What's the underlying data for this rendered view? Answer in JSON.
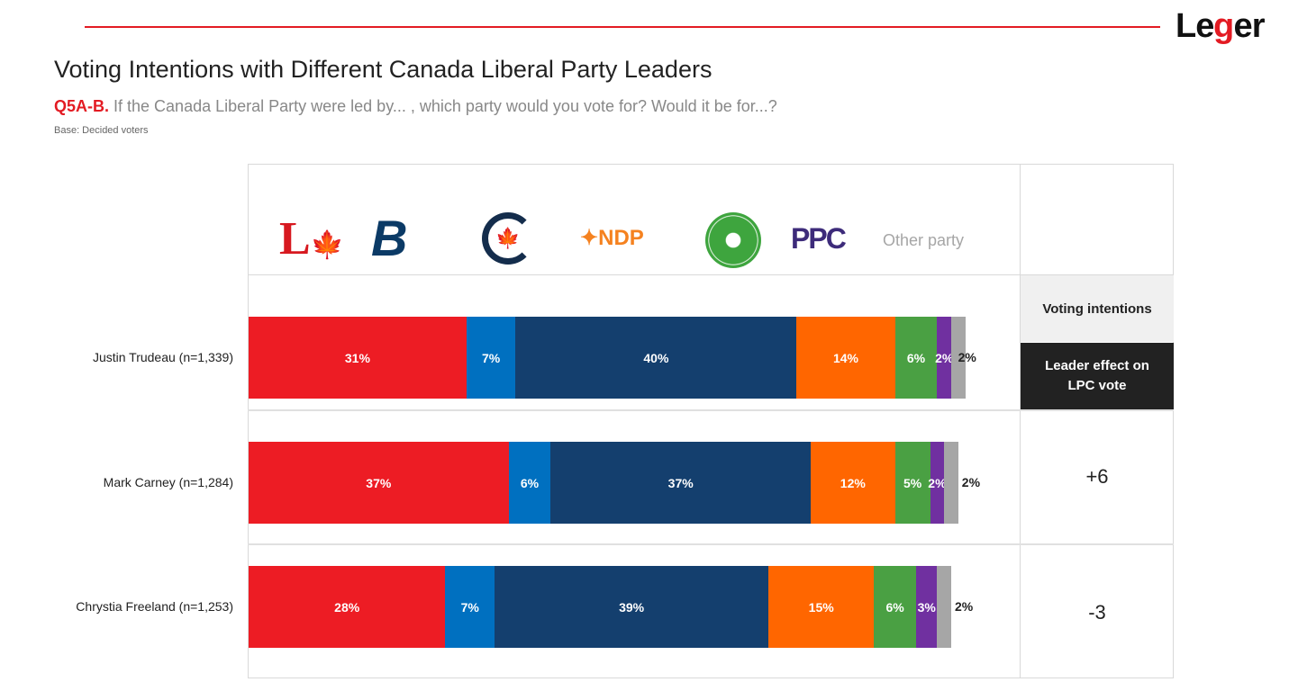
{
  "header": {
    "brand": "Leger",
    "title": "Voting Intentions with Different Canada Liberal Party Leaders",
    "question_code": "Q5A-B.",
    "question": " If the Canada Liberal Party were led by... , which party would you vote for? Would it be for...?",
    "base": "Base: Decided voters"
  },
  "chart_data": {
    "type": "bar",
    "orientation": "horizontal",
    "stacked": true,
    "xlim": [
      0,
      100
    ],
    "categories": [
      "Justin Trudeau (n=1,339)",
      "Mark Carney (n=1,284)",
      "Chrystia Freeland (n=1,253)"
    ],
    "series": [
      {
        "name": "LPC",
        "color": "#ed1c24",
        "values": [
          31,
          37,
          28
        ]
      },
      {
        "name": "Bloc Québécois",
        "color": "#0070c0",
        "values": [
          7,
          6,
          7
        ]
      },
      {
        "name": "CPC",
        "color": "#143f6e",
        "values": [
          40,
          37,
          39
        ]
      },
      {
        "name": "NDP",
        "color": "#ff6600",
        "values": [
          14,
          12,
          15
        ]
      },
      {
        "name": "Green",
        "color": "#4aa043",
        "values": [
          6,
          5,
          6
        ]
      },
      {
        "name": "PPC",
        "color": "#7030a0",
        "values": [
          2,
          2,
          3
        ]
      },
      {
        "name": "Other party",
        "color": "#a6a6a6",
        "values": [
          2,
          2,
          2
        ]
      }
    ]
  },
  "legend": {
    "logos": [
      "liberal-logo",
      "bloc-logo",
      "conservative-logo",
      "NDP",
      "green-logo",
      "PPC"
    ],
    "other": "Other party"
  },
  "panel": {
    "voting_intentions": "Voting intentions",
    "leader_effect": "Leader effect on LPC vote",
    "effects": [
      "",
      "+6",
      "-3"
    ]
  }
}
